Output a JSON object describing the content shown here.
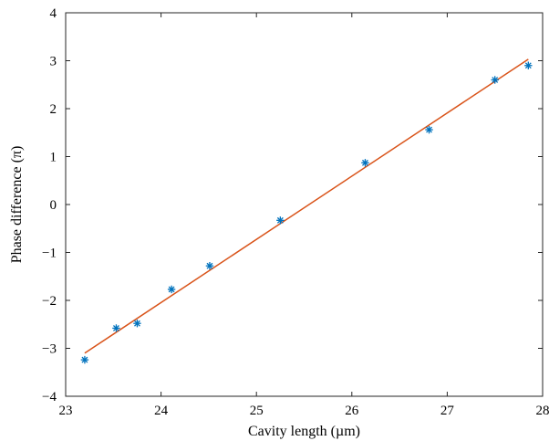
{
  "chart_data": {
    "type": "scatter",
    "xlabel": "Cavity length (µm)",
    "ylabel": "Phase difference (π)",
    "xlim": [
      23,
      28
    ],
    "ylim": [
      -4,
      4
    ],
    "xticks": [
      23,
      24,
      25,
      26,
      27,
      28
    ],
    "yticks": [
      -4,
      -3,
      -2,
      -1,
      0,
      1,
      2,
      3,
      4
    ],
    "xtick_labels": [
      "23",
      "24",
      "25",
      "26",
      "27",
      "28"
    ],
    "ytick_labels": [
      "−4",
      "−3",
      "−2",
      "−1",
      "0",
      "1",
      "2",
      "3",
      "4"
    ],
    "grid": false,
    "series": [
      {
        "type": "scatter",
        "marker": "asterisk",
        "color": "#0072BD",
        "x": [
          23.2,
          23.53,
          23.75,
          24.11,
          24.51,
          25.25,
          26.14,
          26.81,
          27.5,
          27.85
        ],
        "y": [
          -3.24,
          -2.58,
          -2.48,
          -1.77,
          -1.28,
          -0.33,
          0.87,
          1.56,
          2.6,
          2.9
        ]
      },
      {
        "type": "line",
        "color": "#D95319",
        "x": [
          23.2,
          27.85
        ],
        "y": [
          -3.1,
          3.03
        ]
      }
    ]
  }
}
